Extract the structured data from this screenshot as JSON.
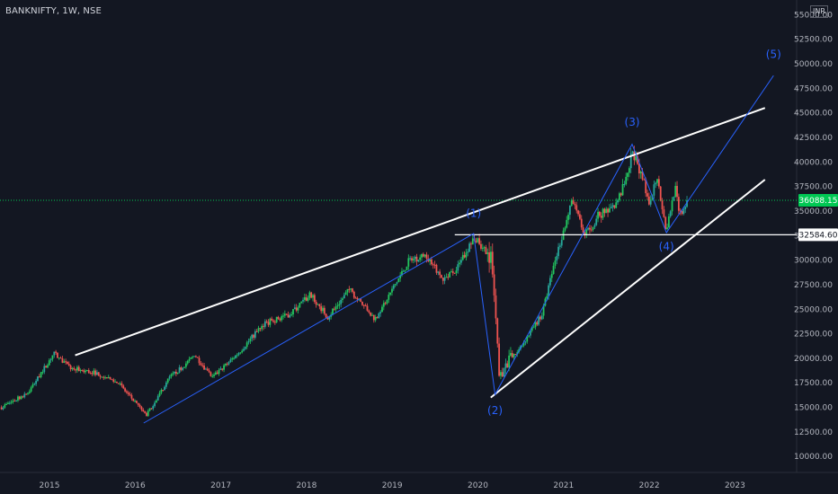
{
  "header": {
    "symbol_label": "BANKNIFTY, 1W, NSE",
    "currency": "INR"
  },
  "colors": {
    "background": "#131722",
    "up": "#26a69a",
    "up_bright": "#22c55e",
    "down": "#ef5350",
    "axis_text": "#b2b5be",
    "wave_line": "#2962ff",
    "trend_line": "#ffffff",
    "last_price_line": "#00c853"
  },
  "chart_data": {
    "type": "candlestick",
    "title": "BANKNIFTY, 1W, NSE",
    "ylim": [
      7500,
      56000
    ],
    "y_ticks": [
      "10000.00",
      "12500.00",
      "15000.00",
      "17500.00",
      "20000.00",
      "22500.00",
      "25000.00",
      "27500.00",
      "30000.00",
      "32500.00",
      "35000.00",
      "37500.00",
      "40000.00",
      "42500.00",
      "45000.00",
      "47500.00",
      "50000.00",
      "52500.00",
      "55000.00"
    ],
    "x_ticks": [
      {
        "label": "2015",
        "x": 2015.0
      },
      {
        "label": "2016",
        "x": 2016.0
      },
      {
        "label": "2017",
        "x": 2017.0
      },
      {
        "label": "2018",
        "x": 2018.0
      },
      {
        "label": "2019",
        "x": 2019.0
      },
      {
        "label": "2020",
        "x": 2020.0
      },
      {
        "label": "2021",
        "x": 2021.0
      },
      {
        "label": "2022",
        "x": 2022.0
      },
      {
        "label": "2023",
        "x": 2023.0
      }
    ],
    "xlim": [
      2014.44,
      2023.41
    ],
    "price_path": [
      [
        2014.44,
        15000
      ],
      [
        2014.75,
        16500
      ],
      [
        2015.05,
        20500
      ],
      [
        2015.25,
        19000
      ],
      [
        2015.55,
        18500
      ],
      [
        2015.8,
        17500
      ],
      [
        2016.13,
        14200
      ],
      [
        2016.4,
        18000
      ],
      [
        2016.7,
        20300
      ],
      [
        2016.9,
        18000
      ],
      [
        2017.2,
        20500
      ],
      [
        2017.5,
        23500
      ],
      [
        2017.8,
        24500
      ],
      [
        2018.05,
        26500
      ],
      [
        2018.25,
        24200
      ],
      [
        2018.5,
        27000
      ],
      [
        2018.7,
        25000
      ],
      [
        2018.8,
        24000
      ],
      [
        2019.0,
        27000
      ],
      [
        2019.2,
        30000
      ],
      [
        2019.4,
        30500
      ],
      [
        2019.6,
        28000
      ],
      [
        2019.75,
        29000
      ],
      [
        2019.95,
        32300
      ],
      [
        2020.15,
        30500
      ],
      [
        2020.2,
        25000
      ],
      [
        2020.25,
        18000
      ],
      [
        2020.33,
        19500
      ],
      [
        2020.45,
        20500
      ],
      [
        2020.6,
        22500
      ],
      [
        2020.75,
        24500
      ],
      [
        2020.9,
        30000
      ],
      [
        2021.1,
        36000
      ],
      [
        2021.25,
        32500
      ],
      [
        2021.4,
        34500
      ],
      [
        2021.6,
        35500
      ],
      [
        2021.75,
        38500
      ],
      [
        2021.8,
        41300
      ],
      [
        2021.95,
        37500
      ],
      [
        2022.0,
        36000
      ],
      [
        2022.1,
        38800
      ],
      [
        2022.15,
        35000
      ],
      [
        2022.2,
        33000
      ],
      [
        2022.3,
        37500
      ],
      [
        2022.35,
        34500
      ],
      [
        2022.45,
        36088
      ]
    ],
    "last_price": 36088.15,
    "last_price_label": "36088.15",
    "level_line": {
      "value": 32584.6,
      "label": "32584.60",
      "x_start": 2019.73
    },
    "trend_lines": [
      {
        "x1": 2015.3,
        "y1": 20300,
        "x2": 2023.35,
        "y2": 45500
      },
      {
        "x1": 2020.15,
        "y1": 16000,
        "x2": 2023.35,
        "y2": 38200
      }
    ],
    "wave_lines": [
      [
        [
          2016.1,
          13400
        ],
        [
          2019.95,
          32700
        ],
        [
          2020.2,
          16300
        ],
        [
          2021.8,
          41800
        ],
        [
          2022.2,
          32800
        ],
        [
          2023.45,
          48800
        ]
      ]
    ],
    "wave_labels": [
      {
        "text": "(1)",
        "x": 2019.95,
        "y": 34400
      },
      {
        "text": "(2)",
        "x": 2020.2,
        "y": 14300
      },
      {
        "text": "(3)",
        "x": 2021.8,
        "y": 43700
      },
      {
        "text": "(4)",
        "x": 2022.2,
        "y": 31000
      },
      {
        "text": "(5)",
        "x": 2023.45,
        "y": 50600
      }
    ]
  }
}
